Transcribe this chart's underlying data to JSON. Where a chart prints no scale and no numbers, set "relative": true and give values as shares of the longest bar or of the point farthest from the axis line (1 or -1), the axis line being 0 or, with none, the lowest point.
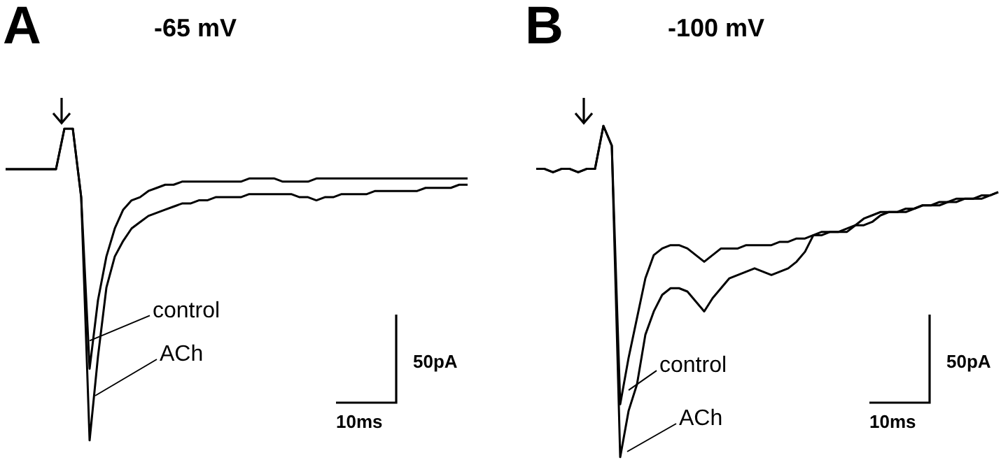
{
  "chart_data": [
    {
      "type": "line",
      "relative": true,
      "title": "-65 mV",
      "annotations": [
        "A",
        "50pA",
        "10ms"
      ],
      "categories": [
        null,
        null,
        null,
        null,
        null,
        null,
        null,
        null,
        null,
        null,
        null,
        null,
        null,
        null,
        null,
        null,
        null,
        null,
        null,
        null,
        null,
        null,
        null,
        null,
        null,
        null,
        null,
        null,
        null,
        null,
        null,
        null,
        null,
        null,
        null,
        null,
        null,
        null,
        null,
        null,
        null,
        null,
        null,
        null,
        null,
        null,
        null,
        null,
        null,
        null,
        null,
        null,
        null,
        null,
        null,
        null
      ],
      "series": [
        {
          "name": "control",
          "color": "#000000",
          "values": [
            0.87,
            0.87,
            0.87,
            0.87,
            0.87,
            0.87,
            0.87,
            1,
            1,
            0.78,
            0.23,
            0.45,
            0.59,
            0.68,
            0.74,
            0.77,
            0.78,
            0.8,
            0.81,
            0.82,
            0.82,
            0.83,
            0.83,
            0.83,
            0.83,
            0.83,
            0.83,
            0.83,
            0.83,
            0.84,
            0.84,
            0.84,
            0.84,
            0.83,
            0.83,
            0.83,
            0.83,
            0.84,
            0.84,
            0.84,
            0.84,
            0.84,
            0.84,
            0.84,
            0.84,
            0.84,
            0.84,
            0.84,
            0.84,
            0.84,
            0.84,
            0.84,
            0.84,
            0.84,
            0.84,
            0.84
          ]
        },
        {
          "name": "ACh",
          "color": "#000000",
          "values": [
            0.87,
            0.87,
            0.87,
            0.87,
            0.87,
            0.87,
            0.87,
            1,
            1,
            0.78,
            0,
            0.27,
            0.49,
            0.59,
            0.64,
            0.68,
            0.7,
            0.72,
            0.73,
            0.74,
            0.75,
            0.76,
            0.76,
            0.77,
            0.77,
            0.78,
            0.78,
            0.78,
            0.78,
            0.79,
            0.79,
            0.79,
            0.79,
            0.79,
            0.79,
            0.78,
            0.78,
            0.77,
            0.78,
            0.78,
            0.79,
            0.79,
            0.79,
            0.79,
            0.8,
            0.8,
            0.8,
            0.8,
            0.8,
            0.8,
            0.81,
            0.81,
            0.81,
            0.81,
            0.82,
            0.82
          ]
        }
      ]
    },
    {
      "type": "line",
      "relative": true,
      "title": "-100 mV",
      "annotations": [
        "B",
        "50pA",
        "10ms"
      ],
      "categories": [
        null,
        null,
        null,
        null,
        null,
        null,
        null,
        null,
        null,
        null,
        null,
        null,
        null,
        null,
        null,
        null,
        null,
        null,
        null,
        null,
        null,
        null,
        null,
        null,
        null,
        null,
        null,
        null,
        null,
        null,
        null,
        null,
        null,
        null,
        null,
        null,
        null,
        null,
        null,
        null,
        null,
        null,
        null,
        null,
        null,
        null,
        null,
        null,
        null,
        null,
        null,
        null,
        null,
        null,
        null,
        null
      ],
      "series": [
        {
          "name": "control",
          "color": "#000000",
          "values": [
            0.87,
            0.87,
            0.86,
            0.87,
            0.87,
            0.86,
            0.87,
            0.87,
            1,
            0.94,
            0.16,
            0.3,
            0.42,
            0.54,
            0.61,
            0.63,
            0.64,
            0.64,
            0.63,
            0.61,
            0.59,
            0.61,
            0.63,
            0.63,
            0.63,
            0.64,
            0.64,
            0.64,
            0.64,
            0.65,
            0.65,
            0.66,
            0.66,
            0.67,
            0.67,
            0.68,
            0.68,
            0.69,
            0.7,
            0.7,
            0.71,
            0.73,
            0.74,
            0.74,
            0.75,
            0.75,
            0.76,
            0.76,
            0.76,
            0.77,
            0.77,
            0.78,
            0.78,
            0.78,
            0.79,
            0.8
          ]
        },
        {
          "name": "ACh",
          "color": "#000000",
          "values": [
            0.87,
            0.87,
            0.86,
            0.87,
            0.87,
            0.86,
            0.87,
            0.87,
            1,
            0.94,
            0,
            0.14,
            0.22,
            0.37,
            0.44,
            0.49,
            0.51,
            0.51,
            0.5,
            0.47,
            0.44,
            0.48,
            0.51,
            0.54,
            0.55,
            0.56,
            0.57,
            0.56,
            0.55,
            0.56,
            0.57,
            0.59,
            0.62,
            0.67,
            0.68,
            0.68,
            0.68,
            0.68,
            0.7,
            0.72,
            0.73,
            0.74,
            0.74,
            0.74,
            0.74,
            0.75,
            0.76,
            0.76,
            0.77,
            0.77,
            0.78,
            0.78,
            0.78,
            0.79,
            0.79,
            0.8
          ]
        }
      ]
    }
  ]
}
